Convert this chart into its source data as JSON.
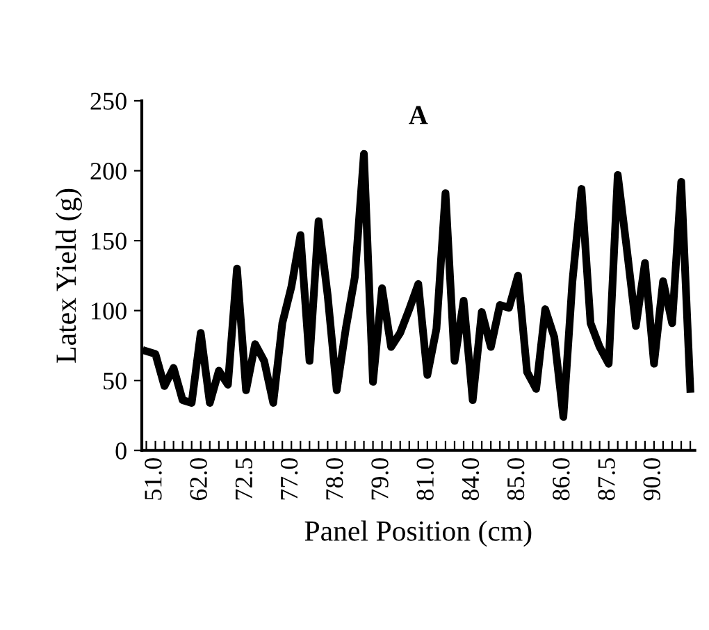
{
  "chart_data": {
    "type": "line",
    "title": "A",
    "xlabel": "Panel Position (cm)",
    "ylabel": "Latex Yield (g)",
    "categories": [
      null,
      "51.0",
      null,
      null,
      null,
      null,
      "62.0",
      null,
      null,
      null,
      null,
      "72.5",
      null,
      null,
      null,
      null,
      "77.0",
      null,
      null,
      null,
      null,
      "78.0",
      null,
      null,
      null,
      null,
      "79.0",
      null,
      null,
      null,
      null,
      "81.0",
      null,
      null,
      null,
      null,
      "84.0",
      null,
      null,
      null,
      null,
      "85.0",
      null,
      null,
      null,
      null,
      "86.0",
      null,
      null,
      null,
      null,
      "87.5",
      null,
      null,
      null,
      null,
      "90.0",
      null,
      null,
      null,
      null
    ],
    "series": [
      {
        "color": "#000000",
        "values": [
          71,
          69,
          46,
          59,
          36,
          34,
          84,
          34,
          57,
          47,
          130,
          43,
          76,
          64,
          34,
          91,
          117,
          154,
          64,
          164,
          111,
          43,
          87,
          124,
          212,
          49,
          116,
          74,
          84,
          101,
          119,
          54,
          87,
          184,
          64,
          107,
          36,
          99,
          74,
          104,
          102,
          125,
          56,
          44,
          101,
          81,
          24,
          121,
          187,
          91,
          74,
          62,
          197,
          144,
          89,
          134,
          62,
          121,
          91,
          192,
          44
        ]
      }
    ],
    "ylim": [
      0,
      250
    ],
    "yticks": [
      0,
      50,
      100,
      150,
      200,
      250
    ],
    "grid": false,
    "legend": false,
    "marker": "none",
    "line_style": "solid"
  }
}
